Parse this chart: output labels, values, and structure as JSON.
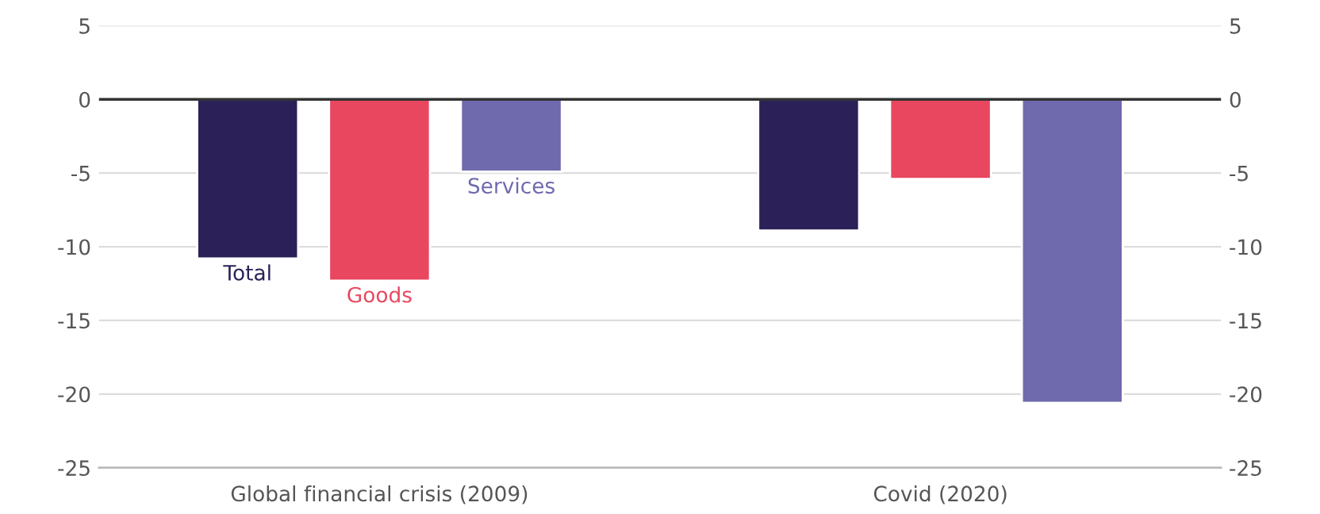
{
  "chart_data": {
    "type": "bar",
    "categories": [
      "Global financial crisis (2009)",
      "Covid (2020)"
    ],
    "series": [
      {
        "name": "Total",
        "color": "#2b2158",
        "values": [
          -10.8,
          -8.9
        ]
      },
      {
        "name": "Goods",
        "color": "#e8475f",
        "values": [
          -12.3,
          -5.4
        ]
      },
      {
        "name": "Services",
        "color": "#6f6aae",
        "values": [
          -4.9,
          -20.6
        ]
      }
    ],
    "ylim": [
      -25,
      5
    ],
    "yticks": [
      -25,
      -20,
      -15,
      -10,
      -5,
      0,
      5
    ],
    "y2lim": [
      -25,
      5
    ],
    "y2ticks": [
      -25,
      -20,
      -15,
      -10,
      -5,
      0,
      5
    ],
    "ref_lines": [
      {
        "axis": "y",
        "value": 0,
        "color": "#333333"
      }
    ],
    "grid": "y",
    "legend": false
  }
}
